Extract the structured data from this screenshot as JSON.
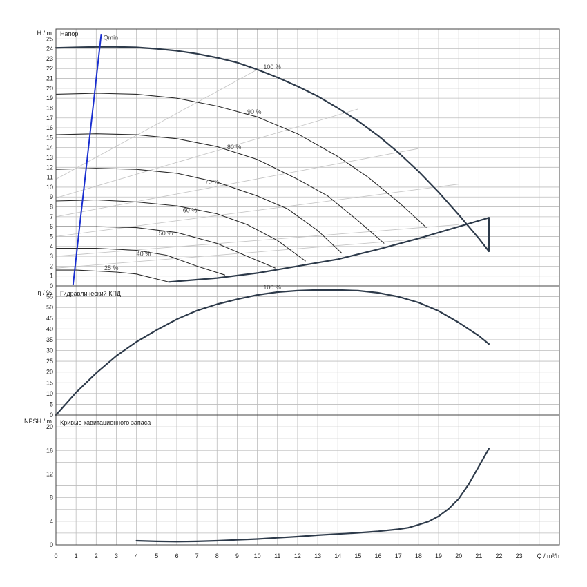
{
  "chart_data": [
    {
      "type": "line",
      "title": "Напор",
      "ylabel": "H / m",
      "xlabel": "",
      "xlim": [
        0,
        25
      ],
      "ylim": [
        0,
        26
      ],
      "xticks": [
        0,
        1,
        2,
        3,
        4,
        5,
        6,
        7,
        8,
        9,
        10,
        11,
        12,
        13,
        14,
        15,
        16,
        17,
        18,
        19,
        20,
        21,
        22,
        23
      ],
      "yticks": [
        0,
        1,
        2,
        3,
        4,
        5,
        6,
        7,
        8,
        9,
        10,
        11,
        12,
        13,
        14,
        15,
        16,
        17,
        18,
        19,
        20,
        21,
        22,
        23,
        24,
        25
      ],
      "grid": true,
      "series": [
        {
          "name": "100 %",
          "x": [
            0,
            1,
            2,
            3,
            4,
            5,
            6,
            7,
            8,
            9,
            10,
            11,
            12,
            13,
            14,
            15,
            16,
            17,
            18,
            19,
            20,
            21,
            21.5
          ],
          "y": [
            24.1,
            24.15,
            24.2,
            24.2,
            24.15,
            24.0,
            23.8,
            23.5,
            23.1,
            22.6,
            21.9,
            21.1,
            20.2,
            19.2,
            18.0,
            16.7,
            15.2,
            13.5,
            11.6,
            9.5,
            7.2,
            4.8,
            3.5
          ]
        },
        {
          "name": "90 %",
          "x": [
            0,
            2,
            4,
            6,
            8,
            10,
            12,
            14,
            15.5,
            17,
            18.4
          ],
          "y": [
            19.4,
            19.5,
            19.4,
            19.0,
            18.2,
            17.1,
            15.4,
            13.1,
            11.0,
            8.5,
            5.9
          ]
        },
        {
          "name": "80 %",
          "x": [
            0,
            2,
            4,
            6,
            8,
            10,
            12,
            13.5,
            15,
            16.3
          ],
          "y": [
            15.3,
            15.4,
            15.3,
            14.9,
            14.1,
            12.8,
            10.8,
            9.1,
            6.6,
            4.3
          ]
        },
        {
          "name": "70 %",
          "x": [
            0,
            2,
            4,
            6,
            8,
            10,
            11.5,
            13,
            14.2
          ],
          "y": [
            11.8,
            11.9,
            11.8,
            11.4,
            10.5,
            9.1,
            7.8,
            5.6,
            3.3
          ]
        },
        {
          "name": "60 %",
          "x": [
            0,
            2,
            4,
            6,
            8,
            9.5,
            11,
            12.4
          ],
          "y": [
            8.6,
            8.7,
            8.5,
            8.1,
            7.3,
            6.2,
            4.6,
            2.5
          ]
        },
        {
          "name": "50 %",
          "x": [
            0,
            2,
            4,
            6,
            8,
            9.5,
            10.9
          ],
          "y": [
            6.0,
            6.0,
            5.9,
            5.4,
            4.3,
            3.0,
            1.8
          ]
        },
        {
          "name": "40 %",
          "x": [
            0,
            2,
            4,
            5.5,
            7,
            8.4
          ],
          "y": [
            3.8,
            3.8,
            3.6,
            3.1,
            2.0,
            1.1
          ]
        },
        {
          "name": "25 %",
          "x": [
            0,
            1,
            2,
            3,
            4,
            5,
            5.6
          ],
          "y": [
            1.6,
            1.6,
            1.5,
            1.4,
            1.2,
            0.7,
            0.4
          ]
        },
        {
          "name": "",
          "x": [
            5.6,
            8,
            10,
            12,
            14,
            16,
            18,
            20,
            21.5
          ],
          "y": [
            0.4,
            0.8,
            1.3,
            2.0,
            2.7,
            3.7,
            4.8,
            6.0,
            6.9
          ]
        },
        {
          "name": "Qmin",
          "x": [
            0.85,
            2.25
          ],
          "y": [
            0.1,
            25.5
          ]
        }
      ],
      "annotations": [
        "Qmin",
        "100 %",
        "90 %",
        "80 %",
        "70 %",
        "60 %",
        "50 %",
        "40 %",
        "25 %"
      ]
    },
    {
      "type": "line",
      "title": "Гидравлический КПД",
      "ylabel": "η / %",
      "xlabel": "",
      "xlim": [
        0,
        25
      ],
      "ylim": [
        0,
        60
      ],
      "yticks": [
        0,
        5,
        10,
        15,
        20,
        25,
        30,
        35,
        40,
        45,
        50,
        55
      ],
      "grid": true,
      "series": [
        {
          "name": "100 %",
          "x": [
            0,
            1,
            2,
            3,
            4,
            5,
            6,
            7,
            8,
            9,
            10,
            11,
            12,
            13,
            14,
            15,
            16,
            17,
            18,
            19,
            20,
            21,
            21.5
          ],
          "y": [
            0,
            10.5,
            19.5,
            27.5,
            34.0,
            39.5,
            44.5,
            48.5,
            51.5,
            53.8,
            55.8,
            57.1,
            57.8,
            58.1,
            58.1,
            57.8,
            56.8,
            55.0,
            52.3,
            48.4,
            43.0,
            36.8,
            33.0
          ]
        }
      ]
    },
    {
      "type": "line",
      "title": "Кривые кавитационного запаса",
      "ylabel": "NPSH / m",
      "xlabel": "Q / m³/h",
      "xlim": [
        0,
        25
      ],
      "ylim": [
        0,
        22
      ],
      "yticks": [
        0,
        4,
        8,
        12,
        16,
        20
      ],
      "grid": true,
      "series": [
        {
          "name": "",
          "x": [
            4,
            5,
            6,
            7,
            8,
            9,
            10,
            11,
            12,
            13,
            14,
            15,
            16,
            17,
            17.5,
            18,
            18.5,
            19,
            19.5,
            20,
            20.5,
            21,
            21.5
          ],
          "y": [
            0.7,
            0.6,
            0.55,
            0.6,
            0.7,
            0.85,
            1.0,
            1.2,
            1.4,
            1.65,
            1.85,
            2.05,
            2.3,
            2.65,
            2.9,
            3.4,
            3.95,
            4.85,
            6.1,
            7.8,
            10.3,
            13.3,
            16.3
          ]
        }
      ]
    }
  ]
}
